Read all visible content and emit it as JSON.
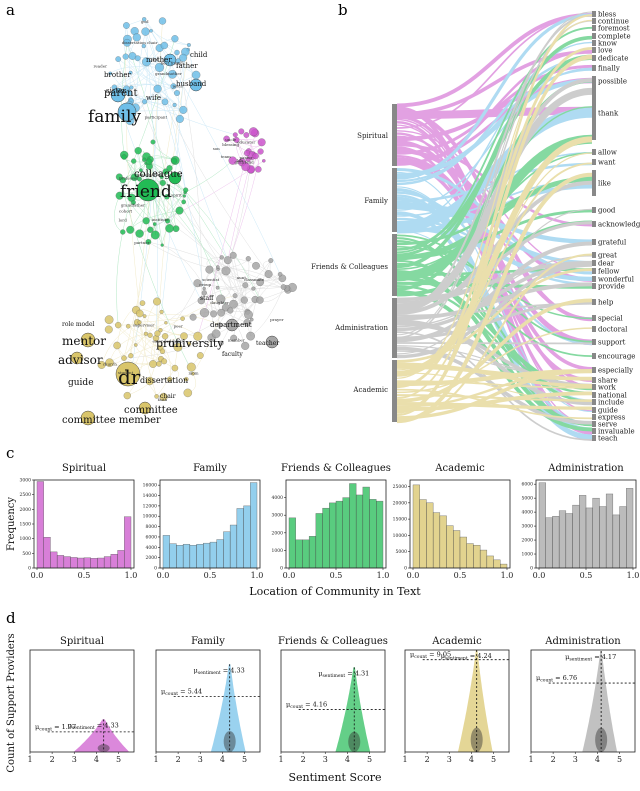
{
  "panels": {
    "a": "a",
    "b": "b",
    "c": "c",
    "d": "d"
  },
  "colors": {
    "Spiritual": "#cc55cc",
    "Family": "#6fbfe8",
    "Friends & Colleagues": "#22bb55",
    "Academic": "#d9c56a",
    "Administration": "#a6a6a6"
  },
  "network": {
    "large_labels": [
      "family",
      "friend",
      "dr"
    ],
    "medium_labels": [
      "parent",
      "colleague",
      "mentor",
      "advisor",
      "prof",
      "university",
      "committee",
      "committee member",
      "guide",
      "dissertation"
    ],
    "small_labels": [
      "child",
      "mother",
      "father",
      "husband",
      "wife",
      "brother",
      "sister",
      "department",
      "faculty",
      "teacher",
      "chair",
      "staff",
      "role model"
    ],
    "tiny_labels": [
      "grandmother",
      "grandfather",
      "son",
      "daughter",
      "mom",
      "dad",
      "grandparent",
      "uncle",
      "aunt",
      "extended family",
      "best friend",
      "partner",
      "girlfriend",
      "classmate",
      "peer",
      "participant",
      "institute",
      "educator",
      "scientist",
      "supervisor",
      "dissertation chair",
      "cohort",
      "lab",
      "group",
      "church",
      "god",
      "lord",
      "pastor",
      "prayer",
      "faith",
      "jesus",
      "spirit",
      "blessing",
      "member",
      "student",
      "reader",
      "professor",
      "team"
    ]
  },
  "chart_data": [
    {
      "type": "sankey",
      "panel": "b",
      "sources": [
        "Spiritual",
        "Family",
        "Friends & Colleagues",
        "Administration",
        "Academic"
      ],
      "targets": [
        "bless",
        "continue",
        "foremost",
        "complete",
        "know",
        "love",
        "dedicate",
        "finally",
        "possible",
        "thank",
        "allow",
        "want",
        "like",
        "good",
        "acknowledge",
        "grateful",
        "great",
        "dear",
        "fellow",
        "wonderful",
        "provide",
        "help",
        "special",
        "doctoral",
        "support",
        "encourage",
        "especially",
        "share",
        "work",
        "national",
        "include",
        "guide",
        "express",
        "serve",
        "invaluable",
        "teach"
      ]
    },
    {
      "type": "bar",
      "panel": "c",
      "xlabel": "Location of Community in Text",
      "ylabel": "Frequency",
      "x_ticks": [
        "0.0",
        "0.5",
        "1.0"
      ],
      "bins": 14,
      "histograms": [
        {
          "name": "Spiritual",
          "ylim": [
            0,
            3000
          ],
          "yticks": [
            "0",
            "500",
            "1000",
            "1500",
            "2000",
            "2500",
            "3000"
          ],
          "values": [
            2950,
            1050,
            550,
            430,
            390,
            360,
            340,
            350,
            330,
            340,
            390,
            470,
            600,
            1750
          ]
        },
        {
          "name": "Family",
          "ylim": [
            0,
            17000
          ],
          "yticks": [
            "0",
            "2000",
            "4000",
            "6000",
            "8000",
            "10000",
            "12000",
            "14000",
            "16000"
          ],
          "values": [
            6300,
            4700,
            4400,
            4600,
            4400,
            4600,
            4800,
            5000,
            5500,
            7000,
            8300,
            11500,
            12000,
            16500
          ]
        },
        {
          "name": "Friends & Colleagues",
          "ylim": [
            0,
            5000
          ],
          "yticks": [
            "0",
            "1000",
            "2000",
            "3000",
            "4000"
          ],
          "values": [
            2850,
            1600,
            1600,
            1800,
            3100,
            3400,
            3700,
            3800,
            4000,
            4800,
            4150,
            4600,
            3900,
            3800
          ]
        },
        {
          "name": "Academic",
          "ylim": [
            0,
            27000
          ],
          "yticks": [
            "0",
            "5000",
            "10000",
            "15000",
            "20000",
            "25000"
          ],
          "values": [
            25500,
            21000,
            20000,
            17000,
            16000,
            13000,
            11500,
            9500,
            7500,
            7000,
            5500,
            3700,
            2500,
            1200
          ]
        },
        {
          "name": "Administration",
          "ylim": [
            0,
            6300
          ],
          "yticks": [
            "0",
            "1000",
            "2000",
            "3000",
            "4000",
            "5000",
            "6000"
          ],
          "values": [
            6100,
            3600,
            3700,
            4100,
            3900,
            4500,
            5200,
            4300,
            5000,
            4400,
            5300,
            3800,
            4400,
            5700
          ]
        }
      ]
    },
    {
      "type": "area",
      "panel": "d",
      "xlabel": "Sentiment Score",
      "ylabel": "Count of Support Providers",
      "x_ticks": [
        "1",
        "2",
        "3",
        "4",
        "5"
      ],
      "xlim": [
        1,
        5.7
      ],
      "ylim": [
        0,
        10
      ],
      "mu_sentiment_label": "μ",
      "mu_sentiment_sub": "sentiment",
      "mu_count_label": "μ",
      "mu_count_sub": "count",
      "distributions": [
        {
          "name": "Spiritual",
          "mu_sentiment": "4.33",
          "mu_count": "1.97",
          "sentiment_mean": 4.33,
          "count_mean": 1.97,
          "peak": 3.2
        },
        {
          "name": "Family",
          "mu_sentiment": "4.33",
          "mu_count": "5.44",
          "sentiment_mean": 4.33,
          "count_mean": 5.44,
          "peak": 8.6
        },
        {
          "name": "Friends & Colleagues",
          "mu_sentiment": "4.31",
          "mu_count": "4.16",
          "sentiment_mean": 4.31,
          "count_mean": 4.16,
          "peak": 8.3
        },
        {
          "name": "Academic",
          "mu_sentiment": "4.24",
          "mu_count": "9.05",
          "sentiment_mean": 4.24,
          "count_mean": 9.05,
          "peak": 10.0
        },
        {
          "name": "Administration",
          "mu_sentiment": "4.17",
          "mu_count": "6.76",
          "sentiment_mean": 4.17,
          "count_mean": 6.76,
          "peak": 9.9
        }
      ]
    }
  ]
}
